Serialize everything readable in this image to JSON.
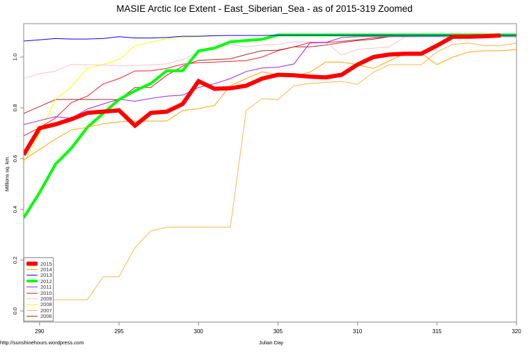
{
  "chart_data": {
    "type": "line",
    "title": "MASIE Arctic Ice Extent - East_Siberian_Sea - as of 2015-319 Zoomed",
    "xlabel": "Julian Day",
    "ylabel": "Millions sq. km.",
    "xlim": [
      289,
      320
    ],
    "ylim": [
      0.0,
      1.12
    ],
    "x_ticks": [
      290,
      295,
      300,
      305,
      310,
      315,
      320
    ],
    "y_ticks": [
      0.0,
      0.2,
      0.4,
      0.6,
      0.8,
      1.0
    ],
    "grid": false,
    "legend_position": "bottom-left",
    "x": [
      289,
      290,
      291,
      292,
      293,
      294,
      295,
      296,
      297,
      298,
      299,
      300,
      301,
      302,
      303,
      304,
      305,
      306,
      307,
      308,
      309,
      310,
      311,
      312,
      313,
      314,
      315,
      316,
      317,
      318,
      319,
      320
    ],
    "series": [
      {
        "name": "2015",
        "color": "#ff0000",
        "width": 6,
        "values": [
          0.615,
          0.72,
          0.735,
          0.755,
          0.78,
          0.785,
          0.79,
          0.73,
          0.78,
          0.785,
          0.815,
          0.905,
          0.875,
          0.877,
          0.887,
          0.915,
          0.93,
          0.928,
          0.923,
          0.92,
          0.93,
          0.97,
          1.0,
          1.01,
          1.013,
          1.013,
          1.045,
          1.08,
          1.08,
          1.082,
          1.085,
          null
        ]
      },
      {
        "name": "2014",
        "color": "#ffa500",
        "width": 1,
        "values": [
          0.595,
          0.636,
          0.677,
          0.713,
          0.723,
          0.737,
          0.745,
          0.748,
          0.748,
          0.748,
          0.789,
          0.797,
          0.809,
          0.887,
          0.915,
          0.942,
          0.93,
          0.925,
          0.94,
          0.98,
          0.98,
          0.97,
          0.955,
          0.985,
          1.015,
          1.015,
          0.97,
          1.0,
          1.02,
          1.025,
          1.025,
          1.03
        ]
      },
      {
        "name": "2013",
        "color": "#0000ff",
        "width": 1,
        "values": [
          1.063,
          1.068,
          1.073,
          1.071,
          1.071,
          1.073,
          1.08,
          1.075,
          1.075,
          1.077,
          1.082,
          1.082,
          1.084,
          1.085,
          1.085,
          1.085,
          1.086,
          1.086,
          1.086,
          1.086,
          1.086,
          1.086,
          1.086,
          1.086,
          1.086,
          1.086,
          1.086,
          1.086,
          1.086,
          1.086,
          1.086,
          1.086
        ]
      },
      {
        "name": "2012",
        "color": "#00ff00",
        "width": 4,
        "values": [
          0.367,
          0.466,
          0.578,
          0.641,
          0.723,
          0.778,
          0.833,
          0.867,
          0.896,
          0.946,
          0.946,
          1.024,
          1.035,
          1.06,
          1.065,
          1.07,
          1.087,
          1.087,
          1.087,
          1.087,
          1.087,
          1.087,
          1.087,
          1.087,
          1.087,
          1.087,
          1.087,
          1.087,
          1.087,
          1.087,
          1.087,
          1.087
        ]
      },
      {
        "name": "2011",
        "color": "#a020f0",
        "width": 1,
        "values": [
          0.734,
          0.75,
          0.765,
          0.759,
          0.795,
          0.815,
          0.834,
          0.826,
          0.837,
          0.846,
          0.85,
          0.88,
          0.895,
          0.915,
          0.943,
          0.957,
          0.96,
          0.973,
          1.055,
          1.057,
          1.077,
          1.08,
          1.08,
          1.08,
          1.08,
          1.08,
          1.08,
          1.08,
          1.08,
          1.08,
          1.08,
          1.08
        ]
      },
      {
        "name": "2010",
        "color": "#ee2020",
        "width": 1,
        "values": [
          0.69,
          0.722,
          0.76,
          0.82,
          0.846,
          0.894,
          0.915,
          0.945,
          0.946,
          0.955,
          0.972,
          0.978,
          0.98,
          0.983,
          0.986,
          1.0,
          1.025,
          1.04,
          1.057,
          1.057,
          1.062,
          1.068,
          1.075,
          1.08,
          1.082,
          1.083,
          1.084,
          1.085,
          1.085,
          1.085,
          1.085,
          1.085
        ]
      },
      {
        "name": "2009",
        "color": "#ffc0cb",
        "width": 1,
        "values": [
          0.916,
          0.934,
          0.945,
          0.971,
          0.969,
          0.969,
          0.966,
          0.966,
          0.969,
          0.973,
          0.99,
          1.02,
          1.045,
          1.05,
          1.04,
          1.047,
          1.05,
          1.06,
          1.06,
          1.06,
          1.008,
          1.03,
          1.035,
          1.04,
          1.08,
          1.082,
          1.083,
          1.084,
          1.084,
          1.084,
          1.084,
          1.084
        ]
      },
      {
        "name": "2008",
        "color": "#ffff00",
        "width": 1,
        "values": [
          0.58,
          0.7,
          0.833,
          0.882,
          0.956,
          0.97,
          0.99,
          1.044,
          1.058,
          1.073,
          1.078,
          1.08,
          1.083,
          1.085,
          1.085,
          1.085,
          1.085,
          1.085,
          1.085,
          1.085,
          1.085,
          1.085,
          1.085,
          1.085,
          1.085,
          1.085,
          1.085,
          1.085,
          1.085,
          1.085,
          1.085,
          1.085
        ]
      },
      {
        "name": "2007",
        "color": "#ffb347",
        "width": 1,
        "values": [
          0.033,
          0.04,
          0.044,
          0.044,
          0.044,
          0.135,
          0.135,
          0.25,
          0.315,
          0.33,
          0.33,
          0.33,
          0.33,
          0.33,
          0.79,
          0.836,
          0.832,
          0.887,
          0.896,
          0.9,
          0.904,
          0.893,
          0.94,
          0.97,
          0.97,
          0.97,
          1.02,
          1.05,
          1.055,
          1.045,
          1.045,
          1.055
        ]
      },
      {
        "name": "2006",
        "color": "#a52a2a",
        "width": 1,
        "values": [
          0.778,
          0.805,
          0.833,
          0.833,
          0.833,
          0.833,
          0.833,
          0.88,
          0.88,
          0.928,
          0.964,
          0.987,
          0.99,
          0.993,
          1.01,
          1.025,
          1.027,
          1.04,
          1.04,
          1.047,
          1.057,
          1.065,
          1.07,
          1.08,
          1.083,
          1.085,
          1.087,
          1.088,
          1.088,
          1.09,
          1.09,
          1.09
        ]
      }
    ]
  },
  "page": {
    "credit": "http://sunshinehours.wordpress.com"
  }
}
